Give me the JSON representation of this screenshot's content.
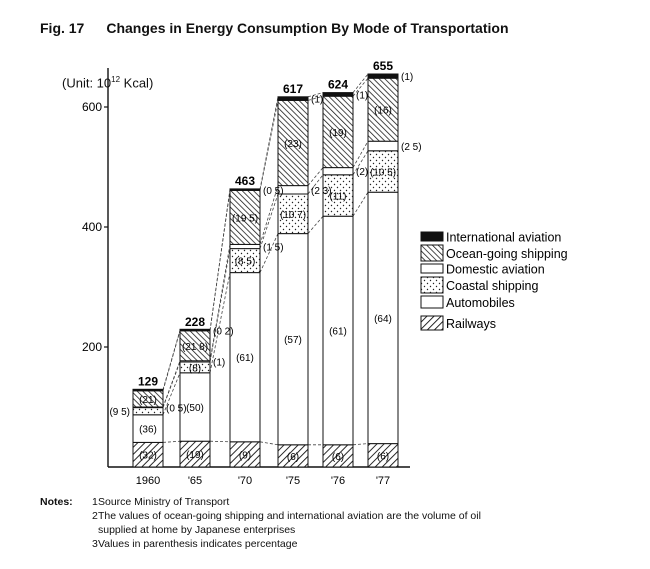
{
  "figure": {
    "label": "Fig. 17",
    "title": "Changes in Energy Consumption By Mode of Transportation",
    "unit_prefix": "(Unit: 10",
    "unit_exp": "12",
    "unit_suffix": " Kcal)"
  },
  "chart_data": {
    "type": "bar",
    "stacked": true,
    "categories": [
      "1960",
      "'65",
      "'70",
      "'75",
      "'76",
      "'77"
    ],
    "yticks": [
      200,
      400,
      600
    ],
    "ylim": [
      0,
      665
    ],
    "totals": [
      129,
      228,
      463,
      617,
      624,
      655
    ],
    "legend_position": "right",
    "series": [
      {
        "name": "Railways",
        "pattern": "hatch-right",
        "values": [
          41,
          43,
          42,
          37,
          37,
          39
        ],
        "labels": [
          "(32)",
          "(19)",
          "(9)",
          "(6)",
          "(6)",
          "(6)"
        ]
      },
      {
        "name": "Automobiles",
        "pattern": "blank",
        "values": [
          46,
          114,
          282,
          352,
          381,
          419
        ],
        "labels": [
          "(36)",
          "(50)",
          "(61)",
          "(57)",
          "(61)",
          "(64)"
        ]
      },
      {
        "name": "Coastal shipping",
        "pattern": "dots",
        "values": [
          12,
          18,
          40,
          66,
          69,
          69
        ],
        "labels": [
          "(9 5)",
          "(8)",
          "(8 5)",
          "(10 7)",
          "(11)",
          "(10 5)"
        ]
      },
      {
        "name": "Domestic aviation",
        "pattern": "blank",
        "values": [
          1,
          2,
          7,
          14,
          12,
          16
        ],
        "labels": [
          "(0 5)",
          "(1)",
          "(1 5)",
          "(2 3)",
          "(2)",
          "(2 5)"
        ]
      },
      {
        "name": "Ocean-going shipping",
        "pattern": "hatch-left",
        "values": [
          27,
          50,
          90,
          142,
          119,
          105
        ],
        "labels": [
          "(21)",
          "(21 8)",
          "(19 5)",
          "(23)",
          "(19)",
          "(16)"
        ]
      },
      {
        "name": "International aviation",
        "pattern": "solid",
        "values": [
          2,
          1,
          2,
          6,
          6,
          7
        ],
        "labels": [
          "",
          "(0 2)",
          "(0 5)",
          "(1)",
          "(1)",
          "(1)"
        ]
      }
    ]
  },
  "notes": {
    "head": "Notes:",
    "items": [
      {
        "num": "1",
        "text": "Source Ministry of Transport"
      },
      {
        "num": "2",
        "text": "The values of ocean-going shipping and international aviation are the volume of oil"
      },
      {
        "num": "",
        "text": "supplied at home by Japanese enterprises"
      },
      {
        "num": "3",
        "text": "Values in parenthesis indicates percentage"
      }
    ]
  }
}
